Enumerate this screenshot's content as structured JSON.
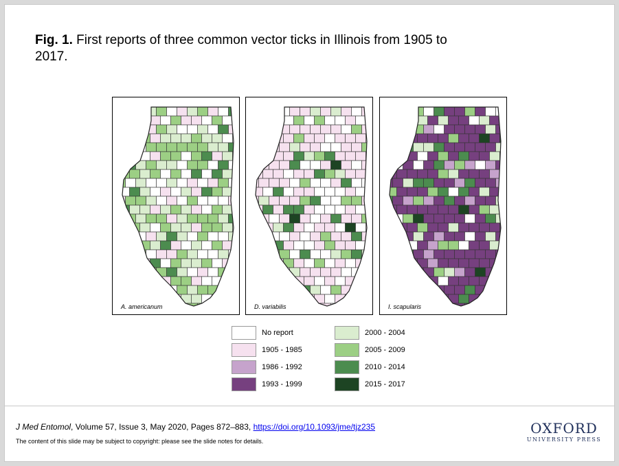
{
  "caption": {
    "fig_label": "Fig. 1.",
    "text": " First reports of three common vector ticks in Illinois from 1905 to 2017."
  },
  "maps": [
    {
      "label": "A. americanum"
    },
    {
      "label": "D. variabilis"
    },
    {
      "label": "I. scapularis"
    }
  ],
  "legend": [
    {
      "label": "No report",
      "color": "#ffffff"
    },
    {
      "label": "1905 - 1985",
      "color": "#f6e1ef"
    },
    {
      "label": "1986 - 1992",
      "color": "#c6a3cc"
    },
    {
      "label": "1993 - 1999",
      "color": "#76407f"
    },
    {
      "label": "2000 - 2004",
      "color": "#daedcf"
    },
    {
      "label": "2005 - 2009",
      "color": "#9ccf84"
    },
    {
      "label": "2010 - 2014",
      "color": "#4c8c4f"
    },
    {
      "label": "2015 - 2017",
      "color": "#1d4423"
    }
  ],
  "citation": {
    "journal": "J Med Entomol",
    "details": ", Volume 57, Issue 3, May 2020, Pages 872–883, ",
    "doi": "https://doi.org/10.1093/jme/tjz235",
    "copyright": "The content of this slide may be subject to copyright: please see the slide notes for details."
  },
  "publisher": {
    "name": "OXFORD",
    "subtitle": "UNIVERSITY PRESS"
  }
}
